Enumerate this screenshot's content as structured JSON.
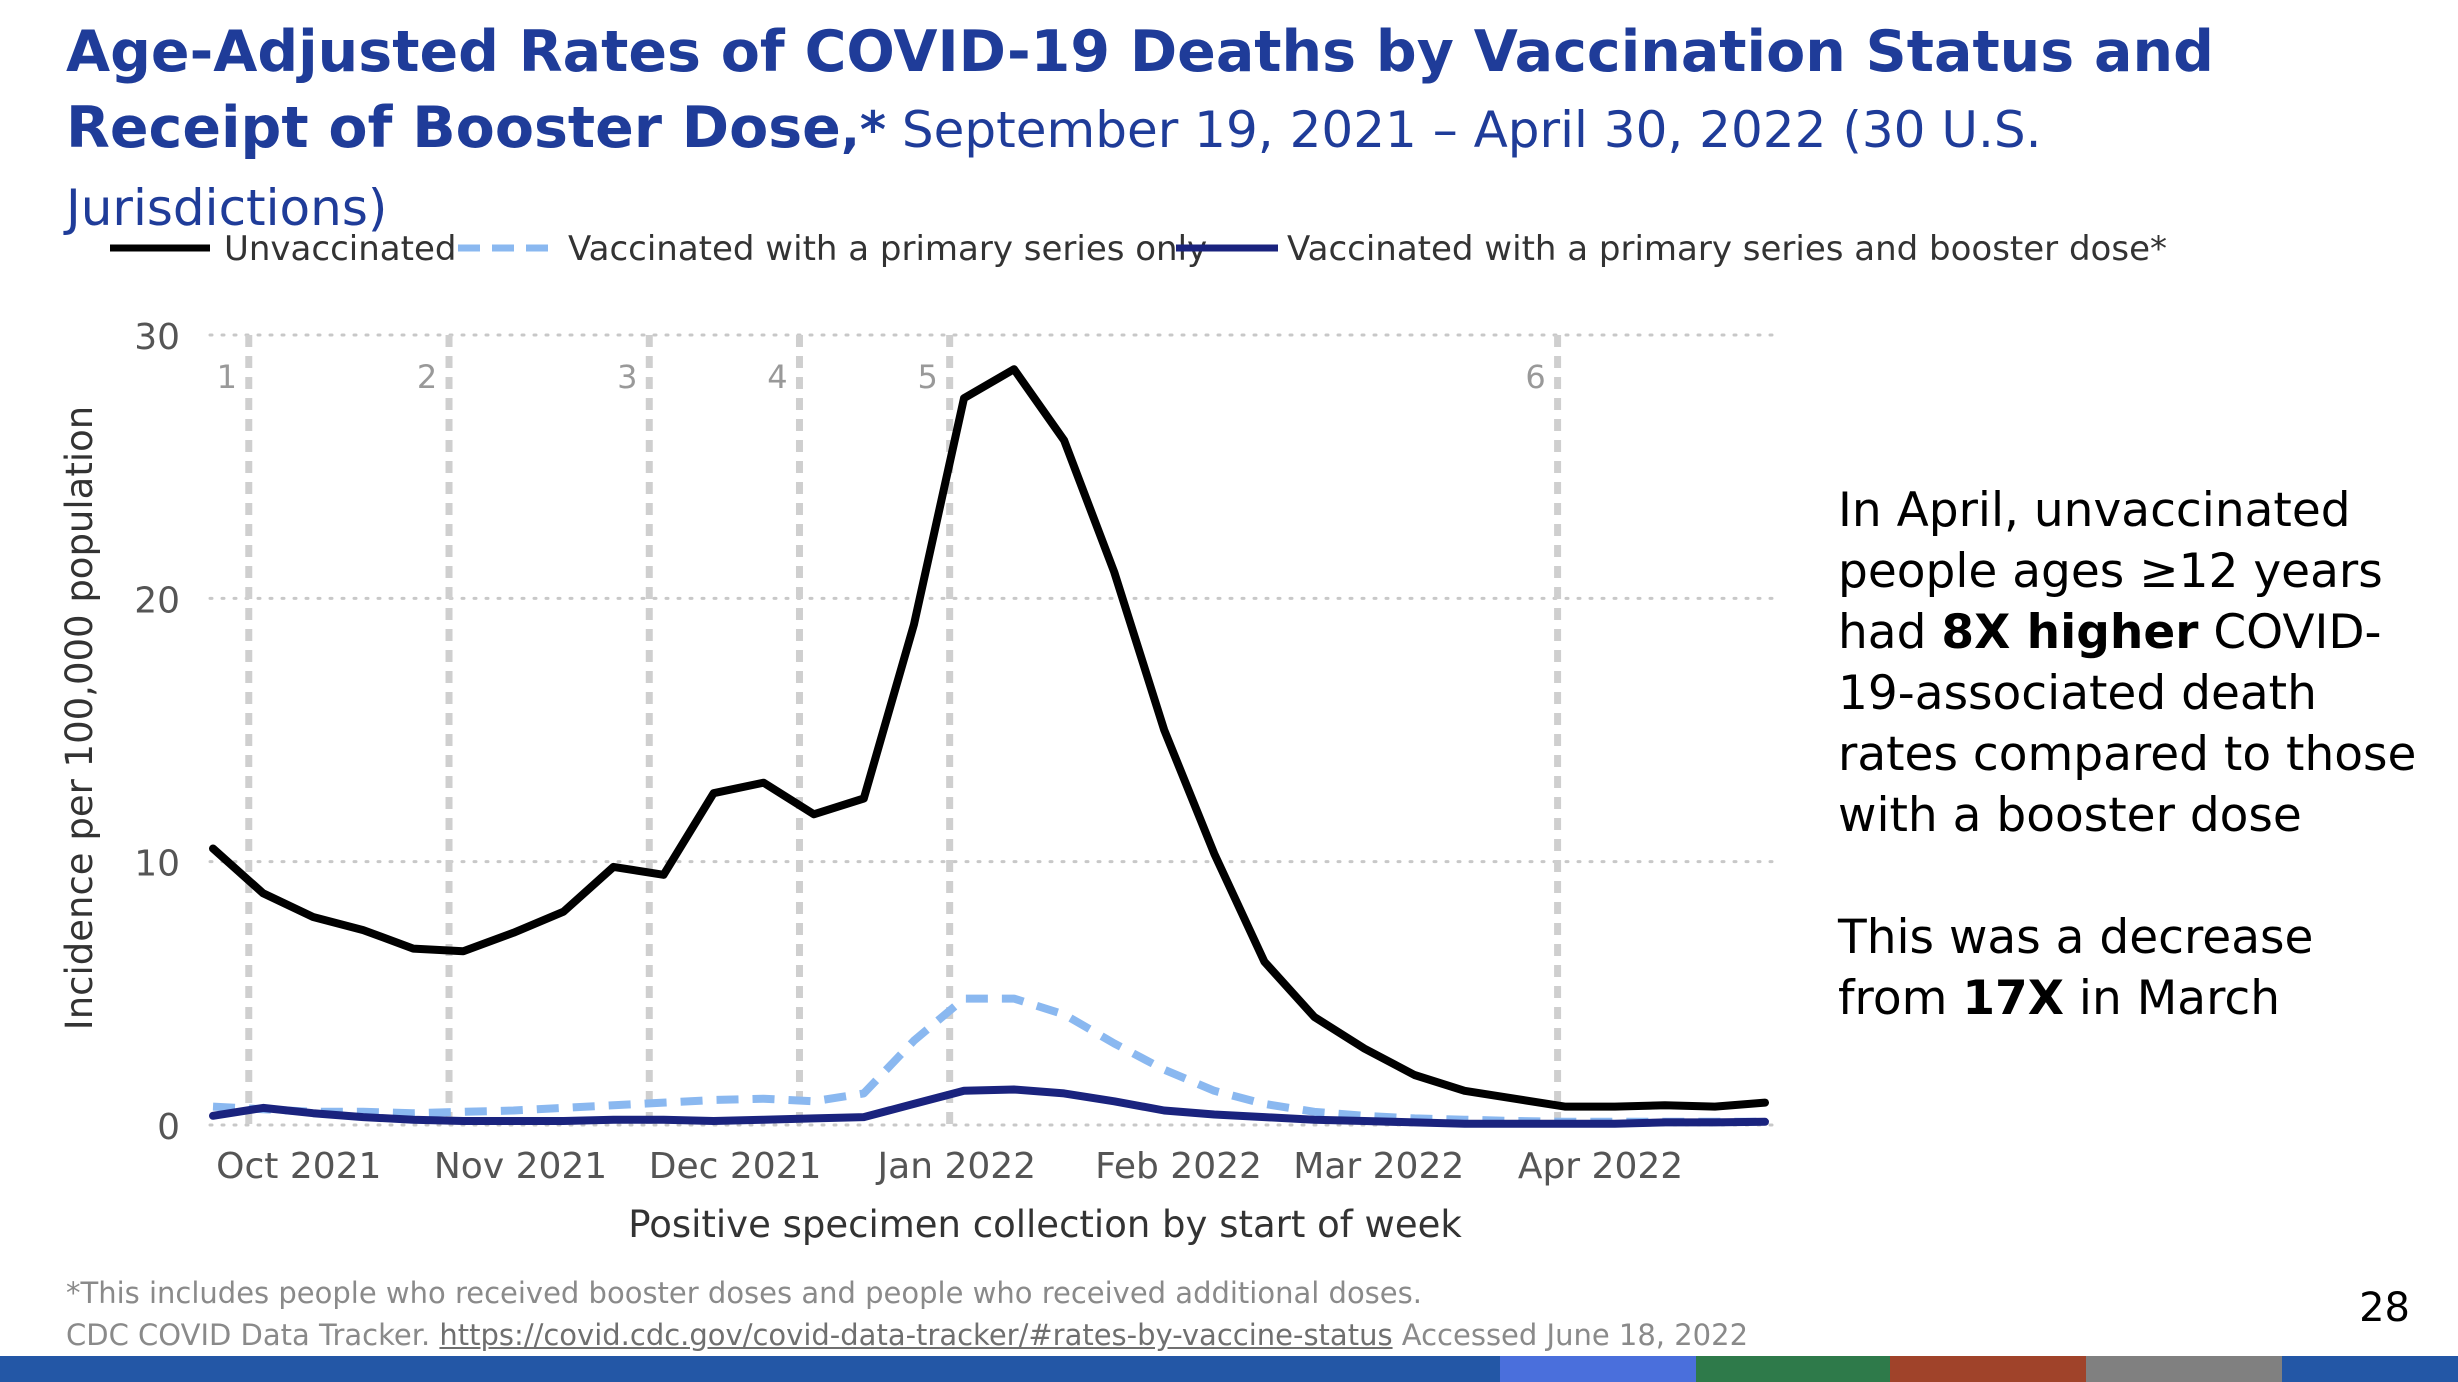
{
  "slide": {
    "title_bold": "Age-Adjusted Rates of COVID-19 Deaths by Vaccination Status and Receipt of Booster Dose",
    "title_star": ",*",
    "title_sub": " September 19, 2021 – April 30, 2022 (30 U.S. Jurisdictions)",
    "callout_1_a": "In April, unvaccinated people ages ≥12 years had ",
    "callout_1_b": "8X higher",
    "callout_1_c": " COVID-19-associated death rates compared to those with a booster dose",
    "callout_2_a": "This was a decrease from ",
    "callout_2_b": "17X",
    "callout_2_c": " in March",
    "footnote_1": "*This includes people who received booster doses and people who received additional doses.",
    "footnote_2_prefix": "CDC COVID Data Tracker. ",
    "footnote_2_link": "https://covid.cdc.gov/covid-data-tracker/#rates-by-vaccine-status",
    "footnote_2_suffix": " Accessed June 18, 2022",
    "page_number": "28",
    "bar_colors": [
      "#2357a6",
      "#4a6fdc",
      "#2e7a4a",
      "#a0432a",
      "#808080",
      "#2357a6"
    ]
  },
  "chart_data": {
    "type": "line",
    "xlabel": "Positive specimen collection by start of week",
    "ylabel": "Incidence per 100,000 population",
    "ylim": [
      0,
      30
    ],
    "yticks": [
      0,
      10,
      20,
      30
    ],
    "xlim": [
      "2021-09-19",
      "2022-04-30"
    ],
    "x_tick_labels": [
      {
        "label": "Oct 2021",
        "date": "2021-10-01"
      },
      {
        "label": "Nov 2021",
        "date": "2021-11-01"
      },
      {
        "label": "Dec 2021",
        "date": "2021-12-01"
      },
      {
        "label": "Jan 2022",
        "date": "2022-01-01"
      },
      {
        "label": "Feb 2022",
        "date": "2022-02-01"
      },
      {
        "label": "Mar 2022",
        "date": "2022-03-01"
      },
      {
        "label": "Apr 2022",
        "date": "2022-04-01"
      }
    ],
    "reference_lines": [
      {
        "label": "1",
        "date": "2021-09-24"
      },
      {
        "label": "2",
        "date": "2021-10-22"
      },
      {
        "label": "3",
        "date": "2021-11-19"
      },
      {
        "label": "4",
        "date": "2021-12-10"
      },
      {
        "label": "5",
        "date": "2021-12-31"
      },
      {
        "label": "6",
        "date": "2022-03-26"
      }
    ],
    "grid": true,
    "legend_position": "top",
    "x": [
      "2021-09-19",
      "2021-09-26",
      "2021-10-03",
      "2021-10-10",
      "2021-10-17",
      "2021-10-24",
      "2021-10-31",
      "2021-11-07",
      "2021-11-14",
      "2021-11-21",
      "2021-11-28",
      "2021-12-05",
      "2021-12-12",
      "2021-12-19",
      "2021-12-26",
      "2022-01-02",
      "2022-01-09",
      "2022-01-16",
      "2022-01-23",
      "2022-01-30",
      "2022-02-06",
      "2022-02-13",
      "2022-02-20",
      "2022-02-27",
      "2022-03-06",
      "2022-03-13",
      "2022-03-20",
      "2022-03-27",
      "2022-04-03",
      "2022-04-10",
      "2022-04-17",
      "2022-04-24"
    ],
    "series": [
      {
        "name": "Unvaccinated",
        "color": "#000000",
        "style": "solid",
        "values": [
          10.5,
          8.8,
          7.9,
          7.4,
          6.7,
          6.6,
          7.3,
          8.1,
          9.8,
          9.5,
          12.6,
          13.0,
          11.8,
          12.4,
          19.0,
          27.6,
          28.7,
          26.0,
          21.0,
          15.0,
          10.3,
          6.2,
          4.1,
          2.9,
          1.9,
          1.3,
          1.0,
          0.7,
          0.7,
          0.75,
          0.7,
          0.85
        ]
      },
      {
        "name": "Vaccinated with a primary series only",
        "color": "#8ab8f0",
        "style": "dashed",
        "values": [
          0.7,
          0.6,
          0.5,
          0.5,
          0.45,
          0.5,
          0.55,
          0.65,
          0.75,
          0.85,
          0.95,
          1.0,
          0.9,
          1.2,
          3.2,
          4.8,
          4.8,
          4.2,
          3.1,
          2.1,
          1.3,
          0.8,
          0.5,
          0.35,
          0.25,
          0.2,
          0.15,
          0.12,
          0.12,
          0.12,
          0.12,
          0.12
        ]
      },
      {
        "name": "Vaccinated with a primary series and booster dose*",
        "color": "#1a237e",
        "style": "solid",
        "values": [
          0.35,
          0.65,
          0.45,
          0.3,
          0.2,
          0.15,
          0.15,
          0.15,
          0.2,
          0.2,
          0.15,
          0.2,
          0.25,
          0.3,
          0.8,
          1.3,
          1.35,
          1.2,
          0.9,
          0.55,
          0.4,
          0.3,
          0.2,
          0.15,
          0.1,
          0.05,
          0.05,
          0.05,
          0.05,
          0.1,
          0.1,
          0.12
        ]
      }
    ]
  }
}
